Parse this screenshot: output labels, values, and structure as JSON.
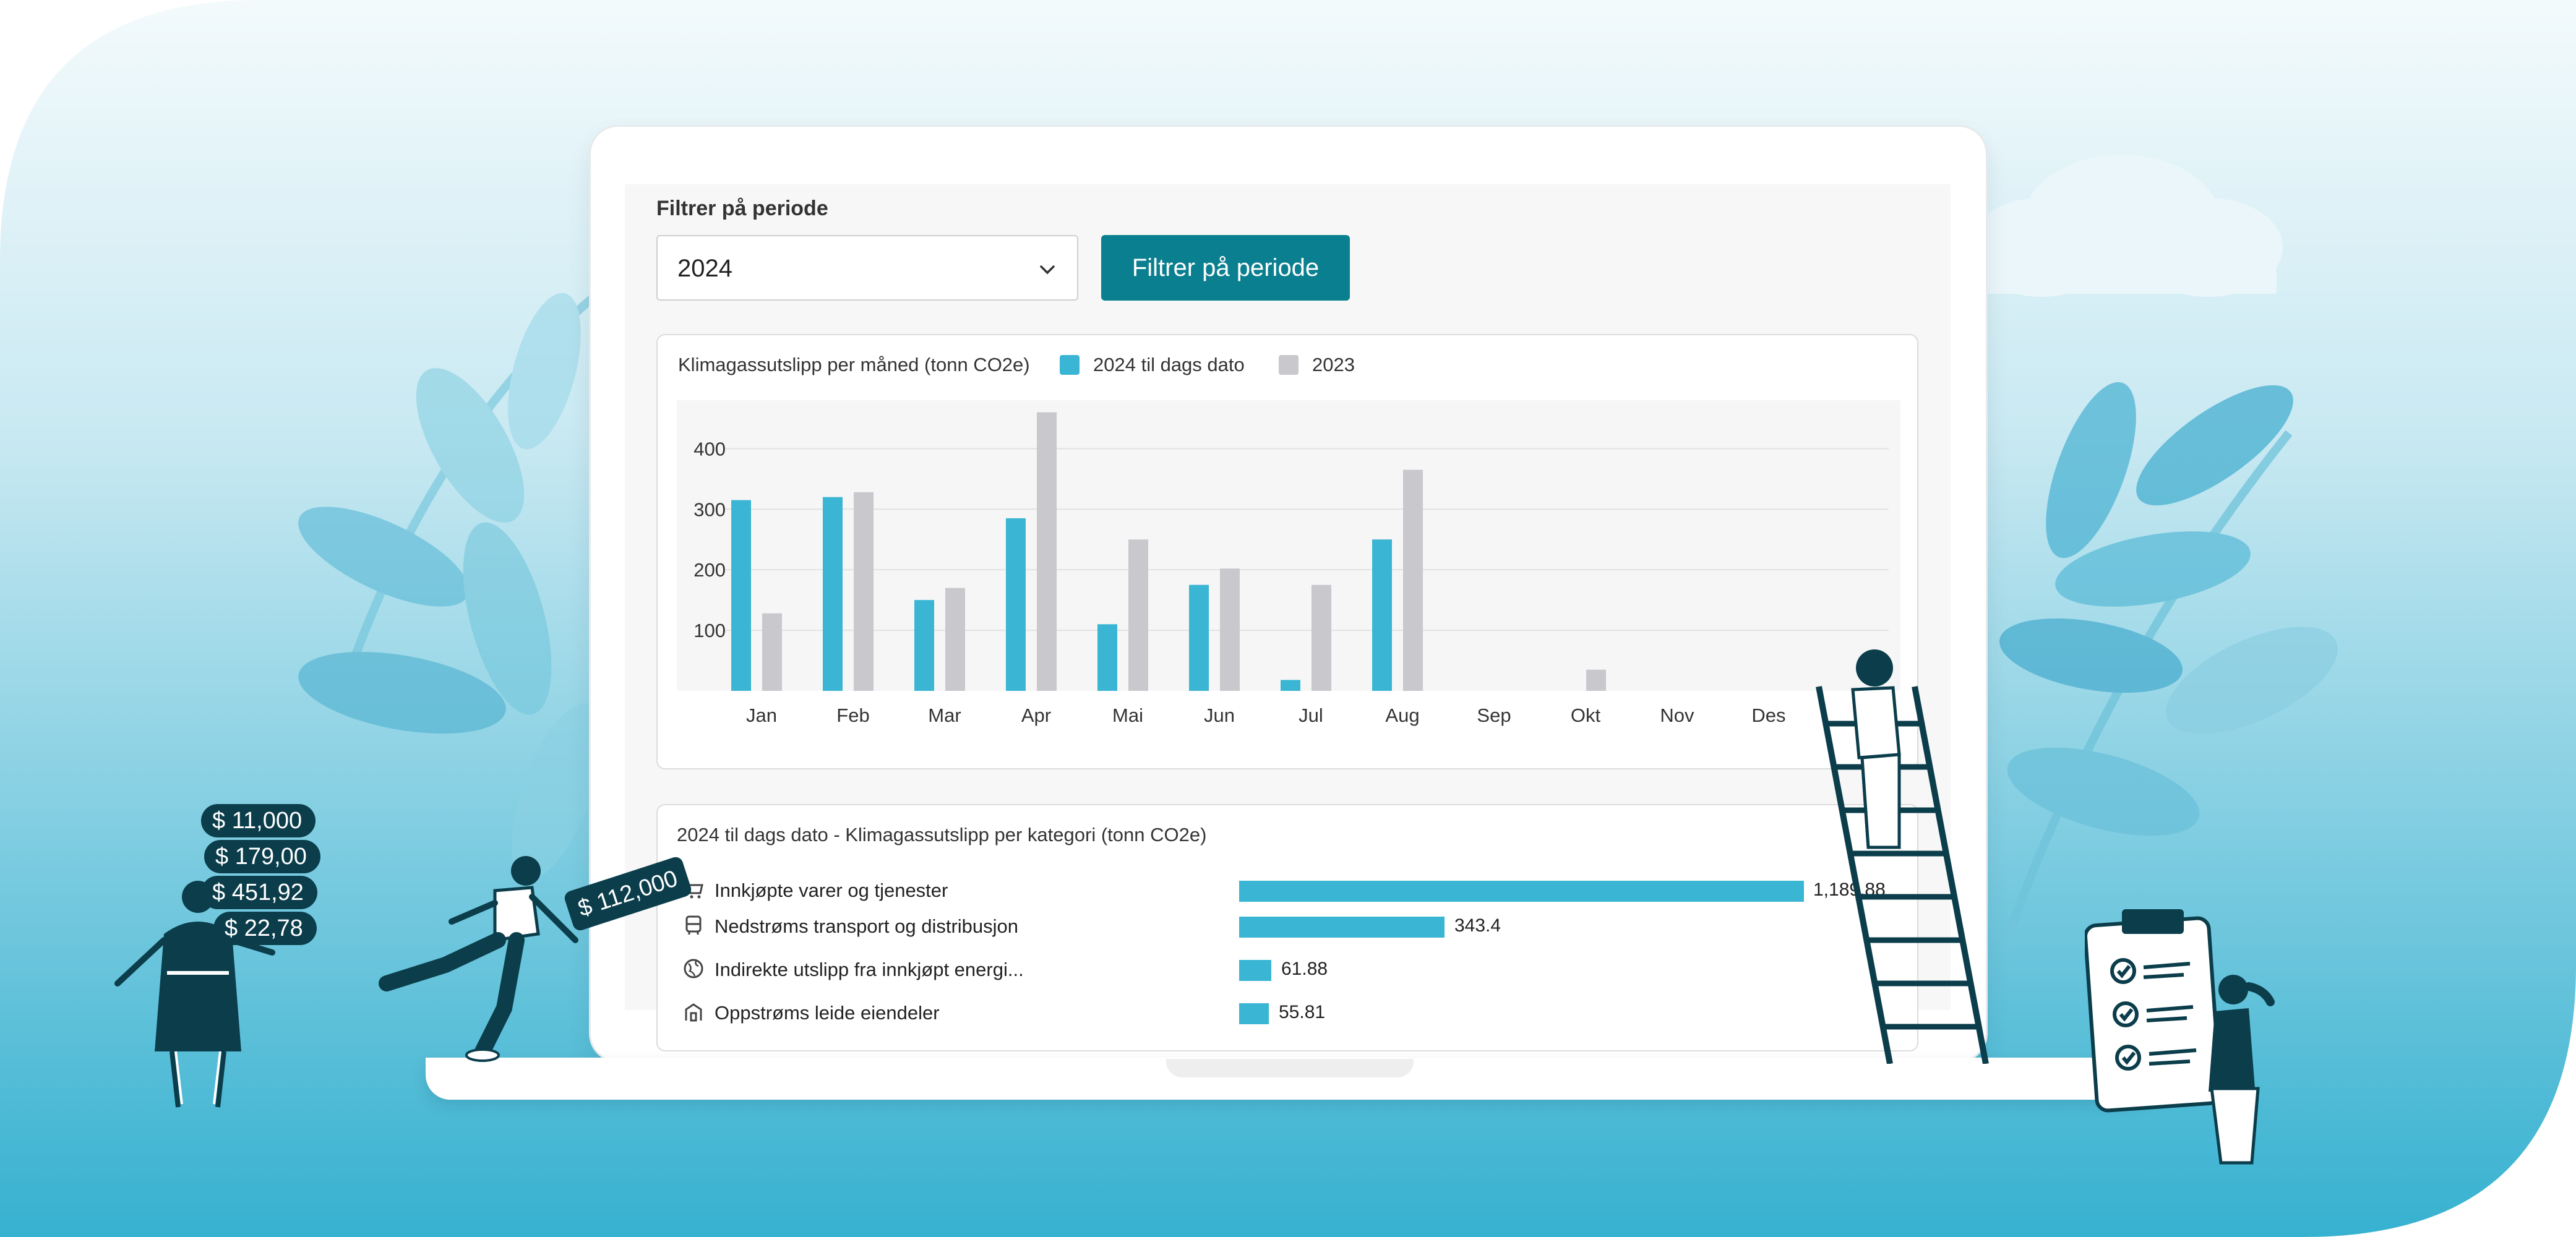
{
  "filter": {
    "label": "Filtrer på periode",
    "selected_year": "2024",
    "button_label": "Filtrer på periode"
  },
  "monthly_card": {
    "title": "Klimagassutslipp per måned (tonn CO2e)",
    "legend": [
      {
        "label": "2024 til dags dato",
        "color": "#3ab5d3"
      },
      {
        "label": "2023",
        "color": "#c8c8cd"
      }
    ]
  },
  "category_card": {
    "title": "2024 til dags dato - Klimagassutslipp per kategori (tonn CO2e)",
    "rows": [
      {
        "label": "Innkjøpte varer og tjenester",
        "value": 1189.88,
        "value_label": "1,189.88",
        "icon": "cart-icon"
      },
      {
        "label": "Nedstrøms transport og distribusjon",
        "value": 343.4,
        "value_label": "343.4",
        "icon": "bus-icon"
      },
      {
        "label": "Indirekte utslipp fra innkjøpt energi...",
        "value": 61.88,
        "value_label": "61.88",
        "icon": "globe-icon"
      },
      {
        "label": "Oppstrøms leide eiendeler",
        "value": 55.81,
        "value_label": "55.81",
        "icon": "building-icon"
      }
    ]
  },
  "decorations": {
    "money_tags": [
      "$ 11,000",
      "$ 179,00",
      "$ 451,92",
      "$ 22,78"
    ],
    "price_tag": "$ 112,000"
  },
  "colors": {
    "accent": "#0a7f8f",
    "bar_2024": "#3ab5d3",
    "bar_2023": "#c8c8cd",
    "background_gradient_top": "#eaf6fa",
    "background_gradient_bottom": "#3ab4d2",
    "figure_dark": "#0b3d4b"
  },
  "chart_data": {
    "type": "bar",
    "title": "Klimagassutslipp per måned (tonn CO2e)",
    "categories": [
      "Jan",
      "Feb",
      "Mar",
      "Apr",
      "Mai",
      "Jun",
      "Jul",
      "Aug",
      "Sep",
      "Okt",
      "Nov",
      "Des"
    ],
    "series": [
      {
        "name": "2024 til dags dato",
        "values": [
          315,
          320,
          150,
          285,
          110,
          175,
          18,
          250,
          0,
          0,
          0,
          0
        ]
      },
      {
        "name": "2023",
        "values": [
          128,
          328,
          170,
          460,
          250,
          202,
          175,
          365,
          0,
          35,
          0,
          0
        ]
      }
    ],
    "yticks": [
      100,
      200,
      300,
      400
    ],
    "ylim": [
      0,
      480
    ],
    "grid": true,
    "legend": "top-left"
  }
}
